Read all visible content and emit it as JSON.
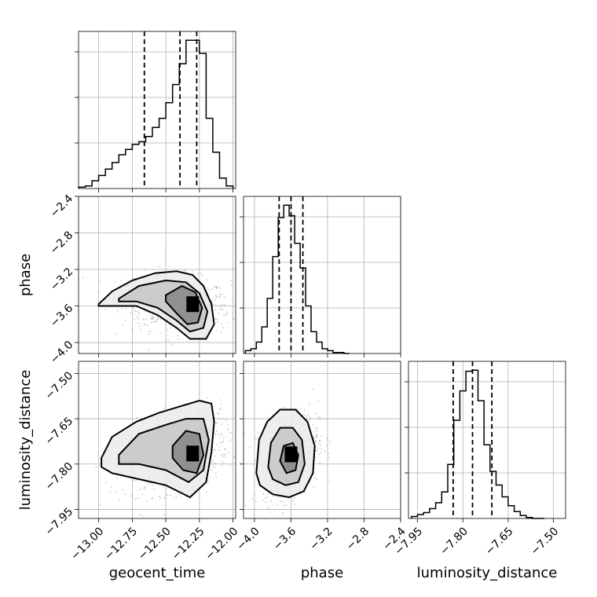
{
  "chart_data": {
    "type": "corner",
    "parameters": [
      "geocent_time",
      "phase",
      "luminosity_distance"
    ],
    "axis_labels": {
      "x": [
        "geocent_time",
        "phase",
        "luminosity_distance"
      ],
      "y": [
        "phase",
        "luminosity_distance"
      ]
    },
    "ranges": {
      "geocent_time": [
        -13.15,
        -11.98
      ],
      "phase": [
        -4.12,
        -2.4
      ],
      "luminosity_distance": [
        -7.98,
        -7.46
      ]
    },
    "ticks": {
      "geocent_time": [
        -13.0,
        -12.75,
        -12.5,
        -12.25,
        -12.0
      ],
      "phase": [
        -4.0,
        -3.6,
        -3.2,
        -2.8,
        -2.4
      ],
      "luminosity_distance": [
        -7.95,
        -7.8,
        -7.65,
        -7.5
      ]
    },
    "tick_labels": {
      "geocent_time": [
        "−13.00",
        "−12.75",
        "−12.50",
        "−12.25",
        "−12.00"
      ],
      "phase": [
        "−4.0",
        "−3.6",
        "−3.2",
        "−2.8",
        "−2.4"
      ],
      "luminosity_distance": [
        "−7.95",
        "−7.80",
        "−7.65",
        "−7.50"
      ]
    },
    "grid": true,
    "histograms": {
      "geocent_time": {
        "bins": [
          -13.15,
          -13.1,
          -13.05,
          -13.0,
          -12.95,
          -12.9,
          -12.85,
          -12.8,
          -12.75,
          -12.7,
          -12.65,
          -12.6,
          -12.55,
          -12.5,
          -12.45,
          -12.4,
          -12.35,
          -12.3,
          -12.25,
          -12.2,
          -12.15,
          -12.1,
          -12.05
        ],
        "values": [
          1,
          2,
          6,
          10,
          15,
          20,
          26,
          30,
          34,
          36,
          40,
          47,
          54,
          66,
          80,
          96,
          114,
          114,
          104,
          54,
          28,
          8,
          2
        ],
        "quantiles": [
          -12.66,
          -12.395,
          -12.27
        ]
      },
      "phase": {
        "bins": [
          -4.1,
          -4.04,
          -3.98,
          -3.92,
          -3.86,
          -3.8,
          -3.74,
          -3.68,
          -3.62,
          -3.56,
          -3.5,
          -3.44,
          -3.38,
          -3.32,
          -3.26,
          -3.2,
          -3.14,
          -3.08,
          -3.02
        ],
        "values": [
          3,
          5,
          12,
          28,
          58,
          102,
          143,
          156,
          145,
          116,
          90,
          50,
          23,
          12,
          5,
          3,
          1,
          1,
          0
        ],
        "quantiles": [
          -3.73,
          -3.6,
          -3.47
        ]
      },
      "luminosity_distance": {
        "bins": [
          -7.97,
          -7.95,
          -7.93,
          -7.91,
          -7.89,
          -7.87,
          -7.85,
          -7.83,
          -7.81,
          -7.79,
          -7.77,
          -7.75,
          -7.73,
          -7.71,
          -7.69,
          -7.67,
          -7.65,
          -7.63,
          -7.61,
          -7.59,
          -7.57,
          -7.55
        ],
        "values": [
          2,
          4,
          6,
          10,
          16,
          27,
          55,
          100,
          130,
          150,
          151,
          120,
          75,
          48,
          34,
          22,
          13,
          7,
          3,
          1,
          0,
          0
        ],
        "quantiles": [
          -7.832,
          -7.768,
          -7.704
        ]
      }
    },
    "joint": {
      "phase_vs_geocent_time": {
        "density_peak": {
          "x": -12.3,
          "y": -3.58
        },
        "contours": [
          [
            [
              -13.0,
              -3.58
            ],
            [
              -12.9,
              -3.44
            ],
            [
              -12.75,
              -3.32
            ],
            [
              -12.58,
              -3.24
            ],
            [
              -12.42,
              -3.22
            ],
            [
              -12.3,
              -3.26
            ],
            [
              -12.22,
              -3.38
            ],
            [
              -12.16,
              -3.58
            ],
            [
              -12.14,
              -3.8
            ],
            [
              -12.2,
              -3.96
            ],
            [
              -12.32,
              -3.96
            ],
            [
              -12.42,
              -3.84
            ],
            [
              -12.56,
              -3.7
            ],
            [
              -12.72,
              -3.6
            ],
            [
              -12.88,
              -3.6
            ],
            [
              -13.0,
              -3.6
            ]
          ],
          [
            [
              -12.85,
              -3.52
            ],
            [
              -12.7,
              -3.38
            ],
            [
              -12.5,
              -3.32
            ],
            [
              -12.35,
              -3.34
            ],
            [
              -12.25,
              -3.46
            ],
            [
              -12.19,
              -3.66
            ],
            [
              -12.22,
              -3.84
            ],
            [
              -12.32,
              -3.88
            ],
            [
              -12.42,
              -3.76
            ],
            [
              -12.56,
              -3.62
            ],
            [
              -12.72,
              -3.55
            ],
            [
              -12.85,
              -3.55
            ]
          ],
          [
            [
              -12.5,
              -3.48
            ],
            [
              -12.38,
              -3.38
            ],
            [
              -12.28,
              -3.45
            ],
            [
              -12.23,
              -3.62
            ],
            [
              -12.26,
              -3.78
            ],
            [
              -12.34,
              -3.8
            ],
            [
              -12.42,
              -3.68
            ],
            [
              -12.5,
              -3.55
            ]
          ]
        ]
      },
      "luminosity_distance_vs_geocent_time": {
        "density_peak": {
          "x": -12.3,
          "y": -7.765
        },
        "contours": [
          [
            [
              -12.98,
              -7.78
            ],
            [
              -12.9,
              -7.71
            ],
            [
              -12.72,
              -7.66
            ],
            [
              -12.55,
              -7.63
            ],
            [
              -12.4,
              -7.61
            ],
            [
              -12.25,
              -7.59
            ],
            [
              -12.16,
              -7.6
            ],
            [
              -12.14,
              -7.66
            ],
            [
              -12.16,
              -7.76
            ],
            [
              -12.2,
              -7.86
            ],
            [
              -12.32,
              -7.91
            ],
            [
              -12.5,
              -7.87
            ],
            [
              -12.7,
              -7.85
            ],
            [
              -12.9,
              -7.83
            ],
            [
              -12.98,
              -7.81
            ]
          ],
          [
            [
              -12.85,
              -7.77
            ],
            [
              -12.7,
              -7.7
            ],
            [
              -12.5,
              -7.67
            ],
            [
              -12.35,
              -7.65
            ],
            [
              -12.22,
              -7.65
            ],
            [
              -12.18,
              -7.72
            ],
            [
              -12.22,
              -7.82
            ],
            [
              -12.33,
              -7.86
            ],
            [
              -12.5,
              -7.82
            ],
            [
              -12.7,
              -7.8
            ],
            [
              -12.85,
              -7.8
            ]
          ],
          [
            [
              -12.45,
              -7.74
            ],
            [
              -12.35,
              -7.69
            ],
            [
              -12.25,
              -7.7
            ],
            [
              -12.22,
              -7.77
            ],
            [
              -12.27,
              -7.83
            ],
            [
              -12.37,
              -7.82
            ],
            [
              -12.45,
              -7.78
            ]
          ]
        ]
      },
      "luminosity_distance_vs_phase": {
        "density_peak": {
          "x": -3.6,
          "y": -7.768
        },
        "contours": [
          [
            [
              -3.98,
              -7.83
            ],
            [
              -3.95,
              -7.72
            ],
            [
              -3.86,
              -7.66
            ],
            [
              -3.72,
              -7.62
            ],
            [
              -3.55,
              -7.62
            ],
            [
              -3.42,
              -7.66
            ],
            [
              -3.34,
              -7.74
            ],
            [
              -3.36,
              -7.83
            ],
            [
              -3.46,
              -7.89
            ],
            [
              -3.62,
              -7.91
            ],
            [
              -3.8,
              -7.9
            ],
            [
              -3.94,
              -7.87
            ]
          ],
          [
            [
              -3.85,
              -7.81
            ],
            [
              -3.82,
              -7.73
            ],
            [
              -3.72,
              -7.68
            ],
            [
              -3.58,
              -7.68
            ],
            [
              -3.48,
              -7.72
            ],
            [
              -3.45,
              -7.8
            ],
            [
              -3.52,
              -7.86
            ],
            [
              -3.66,
              -7.87
            ],
            [
              -3.8,
              -7.85
            ]
          ],
          [
            [
              -3.72,
              -7.79
            ],
            [
              -3.68,
              -7.74
            ],
            [
              -3.58,
              -7.73
            ],
            [
              -3.52,
              -7.77
            ],
            [
              -3.55,
              -7.82
            ],
            [
              -3.65,
              -7.83
            ]
          ]
        ]
      }
    }
  }
}
